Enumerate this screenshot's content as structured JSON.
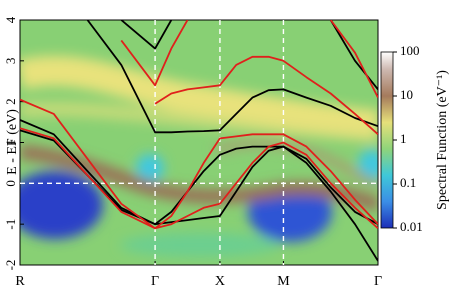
{
  "chart_data": {
    "type": "line",
    "ylabel": "E - EF (eV)",
    "x": [
      0,
      0.25,
      0.5,
      0.75,
      1,
      1.12,
      1.24,
      1.36,
      1.48,
      1.6,
      1.72,
      1.84,
      1.95,
      2.12,
      2.3,
      2.48,
      2.65
    ],
    "xlim": [
      0,
      2.65
    ],
    "xticks": [
      {
        "value": 0,
        "label": "R"
      },
      {
        "value": 1,
        "label": "Γ"
      },
      {
        "value": 1.48,
        "label": "X"
      },
      {
        "value": 1.95,
        "label": "M"
      },
      {
        "value": 2.65,
        "label": "Γ"
      }
    ],
    "ylim": [
      -2,
      4
    ],
    "yticks": [
      -2,
      -1,
      0,
      1,
      2,
      3,
      4
    ],
    "series": [
      {
        "color": "#000000",
        "values": [
          1.55,
          1.2,
          0.3,
          -0.6,
          -1.0,
          -0.95,
          -0.9,
          -0.85,
          -0.8,
          -0.2,
          0.4,
          0.8,
          0.9,
          0.6,
          -0.1,
          -0.7,
          -1.0
        ]
      },
      {
        "color": "#000000",
        "values": [
          1.3,
          1.05,
          0.2,
          -0.65,
          -1.0,
          -0.7,
          -0.2,
          0.3,
          0.7,
          0.85,
          0.9,
          0.9,
          0.9,
          0.5,
          -0.2,
          -1.0,
          -1.9
        ]
      },
      {
        "color": "#000000",
        "values": [
          null,
          null,
          4.0,
          2.9,
          1.25,
          1.25,
          1.27,
          1.28,
          1.3,
          1.7,
          2.1,
          2.28,
          2.3,
          2.1,
          1.9,
          1.6,
          1.4
        ]
      },
      {
        "color": "#000000",
        "values": [
          null,
          null,
          null,
          4.0,
          3.3,
          4.0,
          null,
          null,
          null,
          null,
          null,
          null,
          null,
          null,
          null,
          null,
          null
        ]
      },
      {
        "color": "#000000",
        "values": [
          null,
          null,
          null,
          null,
          null,
          null,
          null,
          null,
          null,
          null,
          null,
          null,
          null,
          null,
          4.0,
          3.0,
          2.3
        ]
      },
      {
        "color": "#e0201c",
        "values": [
          1.35,
          1.1,
          0.2,
          -0.7,
          -1.1,
          -1.0,
          -0.8,
          -0.6,
          -0.5,
          0.0,
          0.5,
          0.9,
          1.0,
          0.7,
          0.0,
          -0.6,
          -1.1
        ]
      },
      {
        "color": "#e0201c",
        "values": [
          2.05,
          1.7,
          0.6,
          -0.5,
          -1.1,
          -0.8,
          -0.2,
          0.5,
          1.1,
          1.15,
          1.2,
          1.2,
          1.2,
          0.9,
          0.3,
          -0.4,
          -1.0
        ]
      },
      {
        "color": "#e0201c",
        "values": [
          null,
          null,
          null,
          null,
          1.95,
          2.2,
          2.3,
          2.35,
          2.4,
          2.9,
          3.1,
          3.1,
          3.0,
          2.6,
          2.2,
          1.7,
          1.2
        ]
      },
      {
        "color": "#e0201c",
        "values": [
          null,
          null,
          null,
          3.5,
          2.4,
          3.3,
          4.0,
          null,
          null,
          null,
          null,
          null,
          null,
          null,
          null,
          null,
          null
        ]
      },
      {
        "color": "#e0201c",
        "values": [
          null,
          null,
          null,
          null,
          null,
          null,
          null,
          null,
          null,
          null,
          null,
          null,
          null,
          null,
          4.0,
          3.2,
          2.1
        ]
      }
    ],
    "zero_line": true,
    "colorbar": {
      "label": "Spectral Function (eV⁻¹)",
      "log": true,
      "lim": [
        0.01,
        100
      ],
      "ticks": [
        0.01,
        0.1,
        1,
        10,
        100
      ]
    }
  }
}
